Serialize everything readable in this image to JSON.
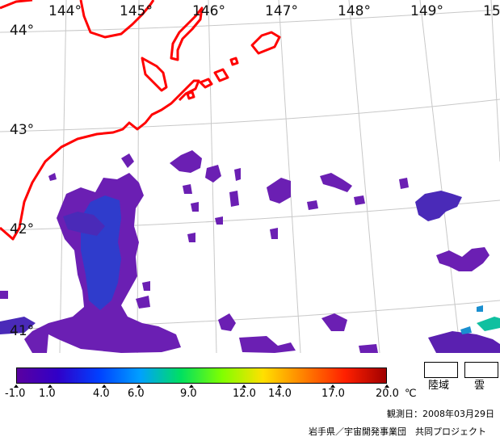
{
  "map": {
    "longitude_labels": [
      "144°",
      "145°",
      "146°",
      "147°",
      "148°",
      "149°",
      "15"
    ],
    "latitude_labels": [
      "44°",
      "43°",
      "42°",
      "41°"
    ],
    "coastline_color": "#ff0000",
    "graticule_color": "#c8c8c8",
    "sst_patch_colors": [
      "#6b1fb3",
      "#4a2ab8",
      "#2f3ccc",
      "#5a20b0",
      "#1a8fd0",
      "#10c0a0"
    ]
  },
  "colorbar": {
    "ticks": [
      "-1.0",
      "1.0",
      "4.0",
      "6.0",
      "9.0",
      "12.0",
      "14.0",
      "17.0",
      "20.0"
    ],
    "unit": "℃",
    "colors": [
      "#5a00a0",
      "#3000c8",
      "#0040ff",
      "#00a0ff",
      "#00e060",
      "#80ff00",
      "#ffe000",
      "#ff8000",
      "#ff2000",
      "#a00000"
    ]
  },
  "legend": {
    "land_label": "陸域",
    "cloud_label": "雲"
  },
  "footer": {
    "observation_date": "観測日：2008年03月29日",
    "credit": "岩手県／宇宙開発事業団　共同プロジェクト"
  }
}
